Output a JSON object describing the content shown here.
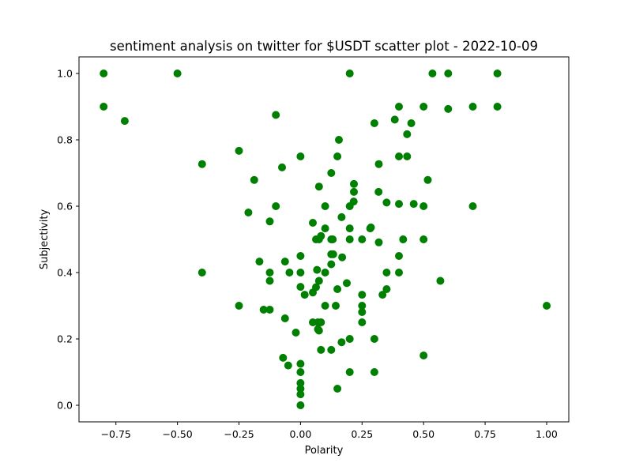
{
  "chart_data": {
    "type": "scatter",
    "title": "sentiment analysis on twitter for $USDT scatter plot - 2022-10-09",
    "xlabel": "Polarity",
    "ylabel": "Subjectivity",
    "xlim": [
      -0.9,
      1.09
    ],
    "ylim": [
      -0.05,
      1.05
    ],
    "xticks": [
      -0.75,
      -0.5,
      -0.25,
      0.0,
      0.25,
      0.5,
      0.75,
      1.0
    ],
    "xtick_labels": [
      "−0.75",
      "−0.50",
      "−0.25",
      "0.00",
      "0.25",
      "0.50",
      "0.75",
      "1.00"
    ],
    "yticks": [
      0.0,
      0.2,
      0.4,
      0.6,
      0.8,
      1.0
    ],
    "ytick_labels": [
      "0.0",
      "0.2",
      "0.4",
      "0.6",
      "0.8",
      "1.0"
    ],
    "grid": false,
    "legend": "none",
    "marker_color": "#008000",
    "points": [
      [
        -0.8,
        1.0
      ],
      [
        -0.5,
        1.0
      ],
      [
        0.2,
        1.0
      ],
      [
        0.536,
        1.0
      ],
      [
        0.6,
        1.0
      ],
      [
        0.8,
        1.0
      ],
      [
        -0.8,
        0.9
      ],
      [
        -0.714,
        0.857
      ],
      [
        -0.1,
        0.875
      ],
      [
        0.3,
        0.85
      ],
      [
        0.4,
        0.9
      ],
      [
        0.5,
        0.9
      ],
      [
        0.6,
        0.893
      ],
      [
        0.7,
        0.9
      ],
      [
        0.8,
        0.9
      ],
      [
        0.383,
        0.861
      ],
      [
        0.45,
        0.85
      ],
      [
        0.433,
        0.817
      ],
      [
        0.156,
        0.8
      ],
      [
        -0.25,
        0.767
      ],
      [
        -0.4,
        0.727
      ],
      [
        -0.075,
        0.717
      ],
      [
        0.0,
        0.75
      ],
      [
        0.15,
        0.75
      ],
      [
        0.4,
        0.75
      ],
      [
        0.433,
        0.75
      ],
      [
        0.318,
        0.727
      ],
      [
        0.125,
        0.7
      ],
      [
        -0.188,
        0.679
      ],
      [
        0.075,
        0.659
      ],
      [
        0.217,
        0.667
      ],
      [
        0.217,
        0.643
      ],
      [
        0.517,
        0.679
      ],
      [
        0.317,
        0.643
      ],
      [
        -0.1,
        0.6
      ],
      [
        0.1,
        0.6
      ],
      [
        0.2,
        0.6
      ],
      [
        0.216,
        0.614
      ],
      [
        0.35,
        0.611
      ],
      [
        0.4,
        0.607
      ],
      [
        0.46,
        0.607
      ],
      [
        0.5,
        0.6
      ],
      [
        0.7,
        0.6
      ],
      [
        -0.212,
        0.581
      ],
      [
        -0.125,
        0.554
      ],
      [
        0.05,
        0.55
      ],
      [
        0.167,
        0.567
      ],
      [
        0.1,
        0.533
      ],
      [
        0.2,
        0.533
      ],
      [
        0.283,
        0.533
      ],
      [
        0.286,
        0.536
      ],
      [
        0.063,
        0.5
      ],
      [
        0.075,
        0.5
      ],
      [
        0.083,
        0.51
      ],
      [
        0.125,
        0.5
      ],
      [
        0.131,
        0.5
      ],
      [
        0.2,
        0.5
      ],
      [
        0.25,
        0.5
      ],
      [
        0.417,
        0.5
      ],
      [
        0.5,
        0.5
      ],
      [
        0.318,
        0.491
      ],
      [
        0.125,
        0.455
      ],
      [
        0.133,
        0.455
      ],
      [
        0.169,
        0.446
      ],
      [
        0.0,
        0.45
      ],
      [
        0.4,
        0.45
      ],
      [
        -0.167,
        0.433
      ],
      [
        -0.063,
        0.433
      ],
      [
        0.125,
        0.425
      ],
      [
        -0.4,
        0.4
      ],
      [
        -0.125,
        0.4
      ],
      [
        -0.045,
        0.4
      ],
      [
        0.0,
        0.4
      ],
      [
        0.067,
        0.408
      ],
      [
        0.1,
        0.4
      ],
      [
        0.35,
        0.4
      ],
      [
        0.4,
        0.4
      ],
      [
        -0.125,
        0.375
      ],
      [
        0.075,
        0.375
      ],
      [
        0.188,
        0.368
      ],
      [
        0.568,
        0.375
      ],
      [
        0.0,
        0.357
      ],
      [
        0.063,
        0.356
      ],
      [
        0.05,
        0.34
      ],
      [
        0.017,
        0.333
      ],
      [
        0.15,
        0.35
      ],
      [
        0.25,
        0.333
      ],
      [
        0.333,
        0.333
      ],
      [
        0.35,
        0.35
      ],
      [
        -0.25,
        0.3
      ],
      [
        0.1,
        0.3
      ],
      [
        0.143,
        0.3
      ],
      [
        0.25,
        0.3
      ],
      [
        1.0,
        0.3
      ],
      [
        -0.15,
        0.288
      ],
      [
        -0.125,
        0.288
      ],
      [
        0.25,
        0.281
      ],
      [
        -0.063,
        0.262
      ],
      [
        0.05,
        0.25
      ],
      [
        0.071,
        0.25
      ],
      [
        0.083,
        0.25
      ],
      [
        0.25,
        0.25
      ],
      [
        0.071,
        0.229
      ],
      [
        0.075,
        0.225
      ],
      [
        -0.019,
        0.219
      ],
      [
        0.2,
        0.2
      ],
      [
        0.3,
        0.2
      ],
      [
        0.167,
        0.19
      ],
      [
        0.083,
        0.167
      ],
      [
        0.125,
        0.167
      ],
      [
        -0.071,
        0.143
      ],
      [
        0.5,
        0.15
      ],
      [
        -0.05,
        0.12
      ],
      [
        0.0,
        0.125
      ],
      [
        0.0,
        0.1
      ],
      [
        0.2,
        0.1
      ],
      [
        0.3,
        0.1
      ],
      [
        0.0,
        0.067
      ],
      [
        0.0,
        0.05
      ],
      [
        0.15,
        0.05
      ],
      [
        0.0,
        0.033
      ],
      [
        0.0,
        0.0
      ]
    ]
  }
}
